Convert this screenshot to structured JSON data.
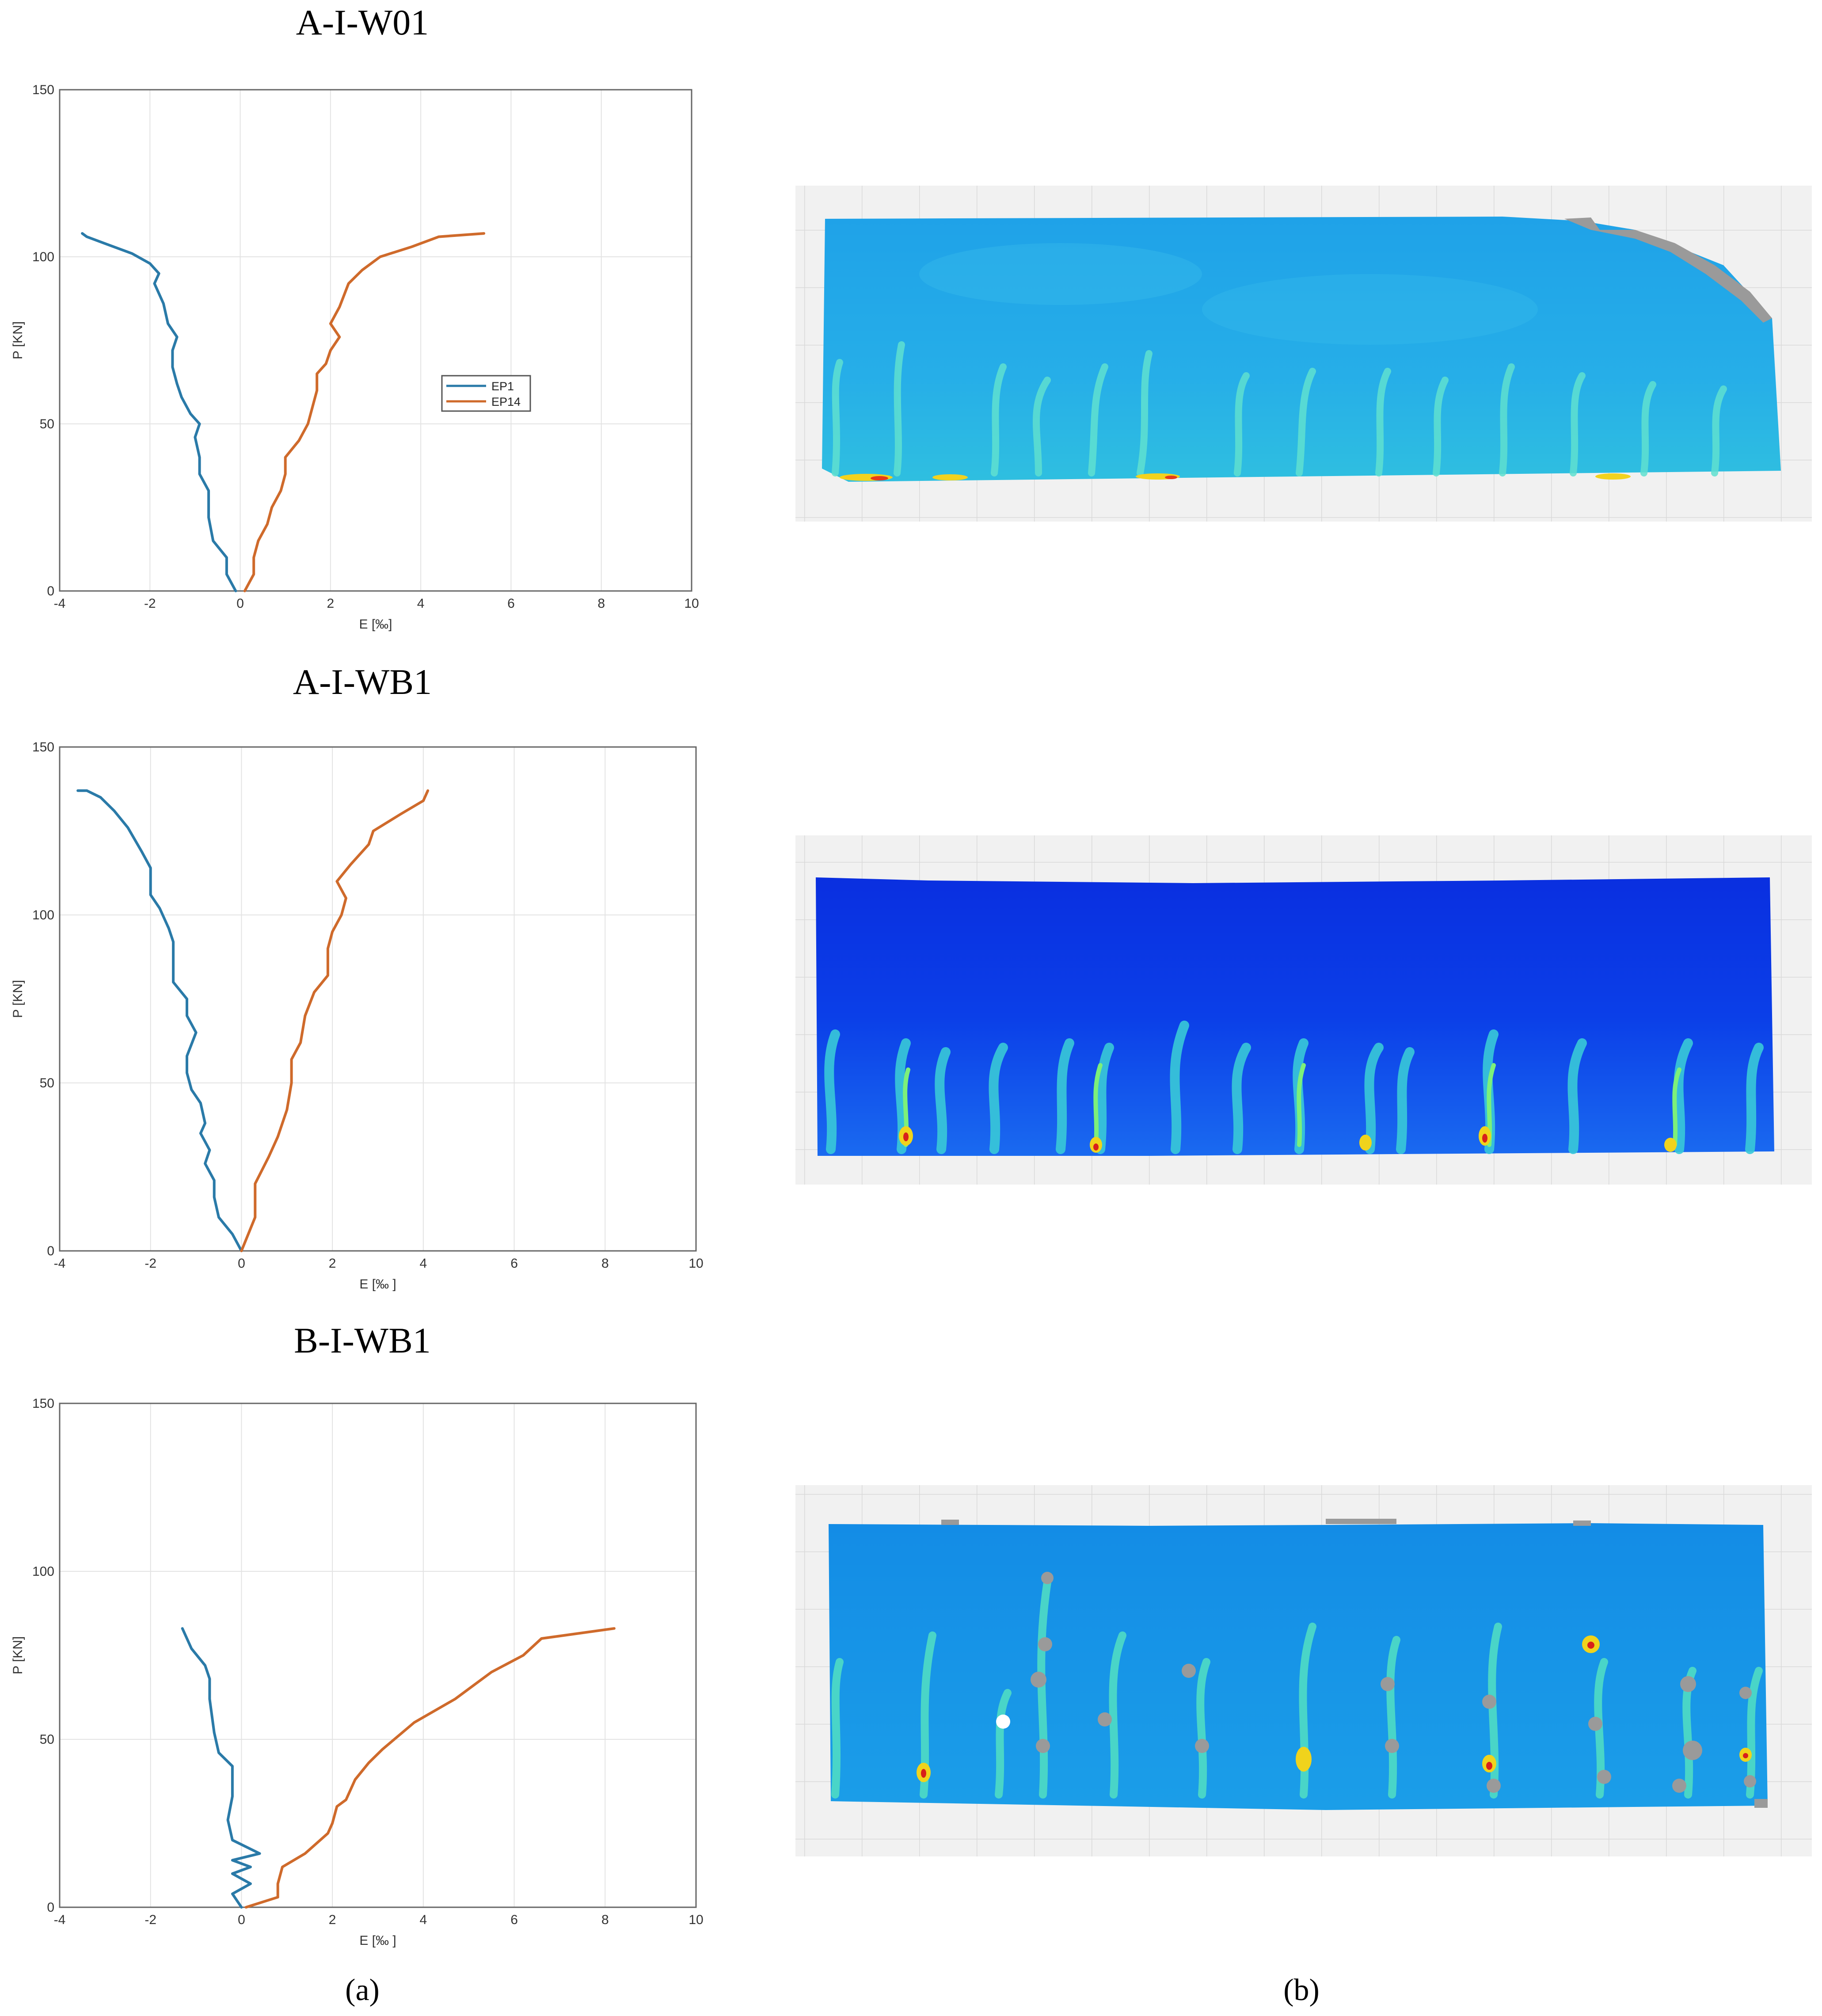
{
  "captions": {
    "a": "(a)",
    "b": "(b)"
  },
  "colors": {
    "ep1": "#2a7aa8",
    "ep14": "#cf6a2b"
  },
  "chart_data": [
    {
      "type": "line",
      "title": "A-I-W01",
      "xlabel": "E [‰]",
      "ylabel": "P [KN]",
      "xlim": [
        -4,
        10
      ],
      "ylim": [
        0,
        150
      ],
      "xticks": [
        "-4",
        "-2",
        "0",
        "2",
        "4",
        "6",
        "8",
        "10"
      ],
      "yticks": [
        "0",
        "50",
        "100",
        "150"
      ],
      "grid": true,
      "legend": {
        "position": "center-right",
        "entries": [
          "EP1",
          "EP14"
        ]
      },
      "series": [
        {
          "name": "EP1",
          "points": [
            [
              -0.1,
              0
            ],
            [
              -0.3,
              5
            ],
            [
              -0.3,
              10
            ],
            [
              -0.6,
              15
            ],
            [
              -0.7,
              22
            ],
            [
              -0.7,
              30
            ],
            [
              -0.9,
              35
            ],
            [
              -0.9,
              40
            ],
            [
              -1.0,
              46
            ],
            [
              -0.9,
              50
            ],
            [
              -1.1,
              53
            ],
            [
              -1.3,
              58
            ],
            [
              -1.4,
              62
            ],
            [
              -1.5,
              67
            ],
            [
              -1.5,
              72
            ],
            [
              -1.4,
              76
            ],
            [
              -1.6,
              80
            ],
            [
              -1.7,
              86
            ],
            [
              -1.9,
              92
            ],
            [
              -1.8,
              95
            ],
            [
              -2.0,
              98
            ],
            [
              -2.4,
              101
            ],
            [
              -3.0,
              104
            ],
            [
              -3.4,
              106
            ],
            [
              -3.5,
              107
            ]
          ]
        },
        {
          "name": "EP14",
          "points": [
            [
              0.1,
              0
            ],
            [
              0.3,
              5
            ],
            [
              0.3,
              10
            ],
            [
              0.4,
              15
            ],
            [
              0.6,
              20
            ],
            [
              0.7,
              25
            ],
            [
              0.9,
              30
            ],
            [
              1.0,
              35
            ],
            [
              1.0,
              40
            ],
            [
              1.3,
              45
            ],
            [
              1.5,
              50
            ],
            [
              1.6,
              55
            ],
            [
              1.7,
              60
            ],
            [
              1.7,
              65
            ],
            [
              1.9,
              68
            ],
            [
              2.0,
              72
            ],
            [
              2.2,
              76
            ],
            [
              2.0,
              80
            ],
            [
              2.2,
              85
            ],
            [
              2.4,
              92
            ],
            [
              2.7,
              96
            ],
            [
              3.1,
              100
            ],
            [
              3.8,
              103
            ],
            [
              4.4,
              106
            ],
            [
              5.4,
              107
            ]
          ]
        }
      ]
    },
    {
      "type": "line",
      "title": "A-I-WB1",
      "xlabel": "E [‰ ]",
      "ylabel": "P [KN]",
      "xlim": [
        -4,
        10
      ],
      "ylim": [
        0,
        150
      ],
      "xticks": [
        "-4",
        "-2",
        "0",
        "2",
        "4",
        "6",
        "8",
        "10"
      ],
      "yticks": [
        "0",
        "50",
        "100",
        "150"
      ],
      "grid": true,
      "series": [
        {
          "name": "EP1",
          "points": [
            [
              0,
              0
            ],
            [
              -0.2,
              5
            ],
            [
              -0.5,
              10
            ],
            [
              -0.6,
              16
            ],
            [
              -0.6,
              21
            ],
            [
              -0.8,
              26
            ],
            [
              -0.7,
              30
            ],
            [
              -0.9,
              35
            ],
            [
              -0.8,
              38
            ],
            [
              -0.9,
              44
            ],
            [
              -1.1,
              48
            ],
            [
              -1.2,
              53
            ],
            [
              -1.2,
              58
            ],
            [
              -1.0,
              65
            ],
            [
              -1.2,
              70
            ],
            [
              -1.2,
              75
            ],
            [
              -1.5,
              80
            ],
            [
              -1.5,
              87
            ],
            [
              -1.5,
              92
            ],
            [
              -1.6,
              96
            ],
            [
              -1.8,
              102
            ],
            [
              -2.0,
              106
            ],
            [
              -2.0,
              114
            ],
            [
              -2.2,
              119
            ],
            [
              -2.5,
              126
            ],
            [
              -2.8,
              131
            ],
            [
              -3.1,
              135
            ],
            [
              -3.4,
              137
            ],
            [
              -3.6,
              137
            ]
          ]
        },
        {
          "name": "EP14",
          "points": [
            [
              0,
              0
            ],
            [
              0.3,
              10
            ],
            [
              0.3,
              20
            ],
            [
              0.6,
              28
            ],
            [
              0.8,
              34
            ],
            [
              1.0,
              42
            ],
            [
              1.1,
              50
            ],
            [
              1.1,
              57
            ],
            [
              1.3,
              62
            ],
            [
              1.4,
              70
            ],
            [
              1.6,
              77
            ],
            [
              1.9,
              82
            ],
            [
              1.9,
              90
            ],
            [
              2.0,
              95
            ],
            [
              2.2,
              100
            ],
            [
              2.3,
              105
            ],
            [
              2.1,
              110
            ],
            [
              2.4,
              115
            ],
            [
              2.8,
              121
            ],
            [
              2.9,
              125
            ],
            [
              3.5,
              130
            ],
            [
              4.0,
              134
            ],
            [
              4.1,
              137
            ]
          ]
        }
      ]
    },
    {
      "type": "line",
      "title": "B-I-WB1",
      "xlabel": "E [‰ ]",
      "ylabel": "P [KN]",
      "xlim": [
        -4,
        10
      ],
      "ylim": [
        0,
        150
      ],
      "xticks": [
        "-4",
        "-2",
        "0",
        "2",
        "4",
        "6",
        "8",
        "10"
      ],
      "yticks": [
        "0",
        "50",
        "100",
        "150"
      ],
      "grid": true,
      "series": [
        {
          "name": "EP1",
          "points": [
            [
              0,
              0
            ],
            [
              -0.2,
              4
            ],
            [
              0.2,
              7
            ],
            [
              -0.2,
              10
            ],
            [
              0.2,
              12
            ],
            [
              -0.2,
              14
            ],
            [
              0.4,
              16
            ],
            [
              -0.2,
              20
            ],
            [
              -0.3,
              26
            ],
            [
              -0.2,
              33
            ],
            [
              -0.2,
              42
            ],
            [
              -0.5,
              46
            ],
            [
              -0.6,
              52
            ],
            [
              -0.7,
              62
            ],
            [
              -0.7,
              68
            ],
            [
              -0.8,
              72
            ],
            [
              -1.1,
              77
            ],
            [
              -1.3,
              83
            ]
          ]
        },
        {
          "name": "EP14",
          "points": [
            [
              0.1,
              0
            ],
            [
              0.8,
              3
            ],
            [
              0.8,
              7
            ],
            [
              0.9,
              12
            ],
            [
              1.4,
              16
            ],
            [
              1.9,
              22
            ],
            [
              2.0,
              25
            ],
            [
              2.1,
              30
            ],
            [
              2.3,
              32
            ],
            [
              2.5,
              38
            ],
            [
              2.8,
              43
            ],
            [
              3.1,
              47
            ],
            [
              3.8,
              55
            ],
            [
              4.7,
              62
            ],
            [
              5.5,
              70
            ],
            [
              6.2,
              75
            ],
            [
              6.6,
              80
            ],
            [
              8.2,
              83
            ]
          ]
        }
      ]
    }
  ]
}
